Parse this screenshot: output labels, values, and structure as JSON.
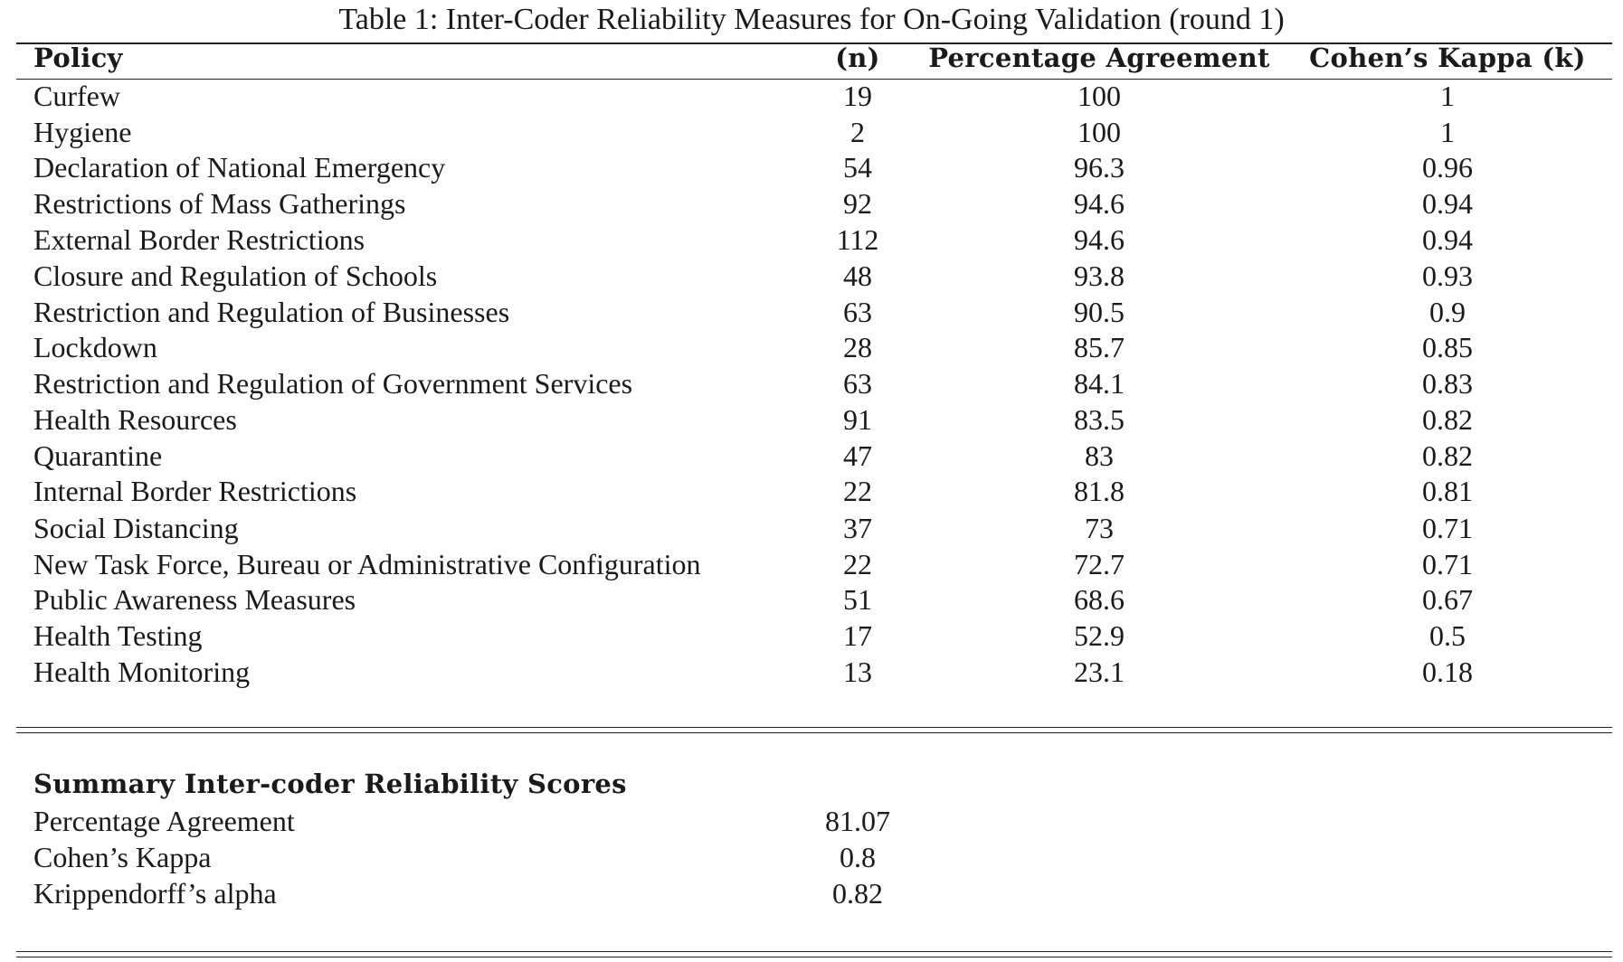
{
  "caption": "Table 1: Inter-Coder Reliability Measures for On-Going Validation (round 1)",
  "table": {
    "headers": {
      "policy": "Policy",
      "n": "(n)",
      "percentage_agreement": "Percentage Agreement",
      "cohens_kappa": "Cohen’s Kappa (k)"
    },
    "rows": [
      {
        "policy": "Curfew",
        "n": "19",
        "pa": "100",
        "ck": "1"
      },
      {
        "policy": "Hygiene",
        "n": "2",
        "pa": "100",
        "ck": "1"
      },
      {
        "policy": "Declaration of National Emergency",
        "n": "54",
        "pa": "96.3",
        "ck": "0.96"
      },
      {
        "policy": "Restrictions of Mass Gatherings",
        "n": "92",
        "pa": "94.6",
        "ck": "0.94"
      },
      {
        "policy": "External Border Restrictions",
        "n": "112",
        "pa": "94.6",
        "ck": "0.94"
      },
      {
        "policy": "Closure and Regulation of Schools",
        "n": "48",
        "pa": "93.8",
        "ck": "0.93"
      },
      {
        "policy": "Restriction and Regulation of Businesses",
        "n": "63",
        "pa": "90.5",
        "ck": "0.9"
      },
      {
        "policy": "Lockdown",
        "n": "28",
        "pa": "85.7",
        "ck": "0.85"
      },
      {
        "policy": "Restriction and Regulation of Government Services",
        "n": "63",
        "pa": "84.1",
        "ck": "0.83"
      },
      {
        "policy": "Health Resources",
        "n": "91",
        "pa": "83.5",
        "ck": "0.82"
      },
      {
        "policy": "Quarantine",
        "n": "47",
        "pa": "83",
        "ck": "0.82"
      },
      {
        "policy": "Internal Border Restrictions",
        "n": "22",
        "pa": "81.8",
        "ck": "0.81"
      },
      {
        "policy": "Social Distancing",
        "n": "37",
        "pa": "73",
        "ck": "0.71"
      },
      {
        "policy": "New Task Force, Bureau or Administrative Configuration",
        "n": "22",
        "pa": "72.7",
        "ck": "0.71"
      },
      {
        "policy": "Public Awareness Measures",
        "n": "51",
        "pa": "68.6",
        "ck": "0.67"
      },
      {
        "policy": "Health Testing",
        "n": "17",
        "pa": "52.9",
        "ck": "0.5"
      },
      {
        "policy": "Health Monitoring",
        "n": "13",
        "pa": "23.1",
        "ck": "0.18"
      }
    ]
  },
  "summary": {
    "title": "Summary Inter-coder Reliability Scores",
    "items": [
      {
        "label": "Percentage Agreement",
        "value": "81.07"
      },
      {
        "label": "Cohen’s Kappa",
        "value": "0.8"
      },
      {
        "label": "Krippendorff’s alpha",
        "value": "0.82"
      }
    ]
  }
}
